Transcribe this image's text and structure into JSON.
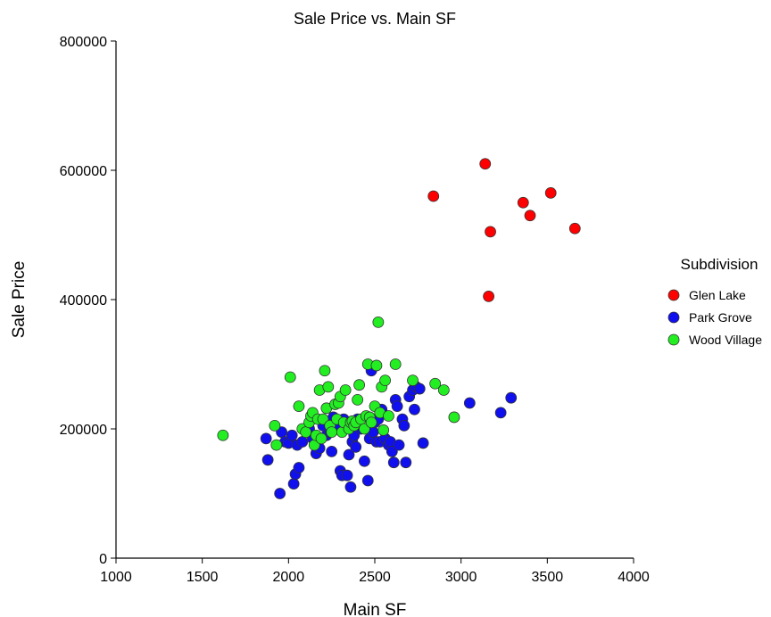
{
  "chart_data": {
    "type": "scatter",
    "title": "Sale Price vs. Main SF",
    "xlabel": "Main SF",
    "ylabel": "Sale Price",
    "xlim": [
      1000,
      4000
    ],
    "ylim": [
      0,
      800000
    ],
    "xticks": [
      "1000",
      "1500",
      "2000",
      "2500",
      "3000",
      "3500",
      "4000"
    ],
    "yticks": [
      "0",
      "200000",
      "400000",
      "600000",
      "800000"
    ],
    "grid": false,
    "legend": {
      "title": "Subdivision",
      "position": "right"
    },
    "series": [
      {
        "name": "Glen Lake",
        "color": "#ff0000",
        "points": [
          [
            2840,
            560000
          ],
          [
            3140,
            610000
          ],
          [
            3160,
            405000
          ],
          [
            3170,
            505000
          ],
          [
            3360,
            550000
          ],
          [
            3400,
            530000
          ],
          [
            3520,
            565000
          ],
          [
            3660,
            510000
          ]
        ]
      },
      {
        "name": "Park Grove",
        "color": "#1010ee",
        "points": [
          [
            1870,
            185000
          ],
          [
            1880,
            152000
          ],
          [
            1950,
            100000
          ],
          [
            1960,
            195000
          ],
          [
            1980,
            180000
          ],
          [
            2000,
            178000
          ],
          [
            2020,
            190000
          ],
          [
            2030,
            115000
          ],
          [
            2040,
            130000
          ],
          [
            2050,
            175000
          ],
          [
            2060,
            140000
          ],
          [
            2080,
            180000
          ],
          [
            2120,
            200000
          ],
          [
            2140,
            185000
          ],
          [
            2160,
            162000
          ],
          [
            2180,
            170000
          ],
          [
            2200,
            205000
          ],
          [
            2220,
            190000
          ],
          [
            2240,
            195000
          ],
          [
            2250,
            165000
          ],
          [
            2260,
            218000
          ],
          [
            2280,
            205000
          ],
          [
            2300,
            135000
          ],
          [
            2310,
            128000
          ],
          [
            2320,
            215000
          ],
          [
            2340,
            128000
          ],
          [
            2350,
            160000
          ],
          [
            2360,
            110000
          ],
          [
            2370,
            180000
          ],
          [
            2380,
            190000
          ],
          [
            2390,
            172000
          ],
          [
            2400,
            215000
          ],
          [
            2420,
            200000
          ],
          [
            2440,
            150000
          ],
          [
            2460,
            120000
          ],
          [
            2470,
            185000
          ],
          [
            2480,
            290000
          ],
          [
            2490,
            195000
          ],
          [
            2500,
            210000
          ],
          [
            2510,
            180000
          ],
          [
            2520,
            215000
          ],
          [
            2530,
            180000
          ],
          [
            2540,
            230000
          ],
          [
            2560,
            185000
          ],
          [
            2580,
            175000
          ],
          [
            2590,
            180000
          ],
          [
            2600,
            165000
          ],
          [
            2610,
            148000
          ],
          [
            2620,
            245000
          ],
          [
            2630,
            235000
          ],
          [
            2640,
            175000
          ],
          [
            2660,
            215000
          ],
          [
            2670,
            205000
          ],
          [
            2680,
            148000
          ],
          [
            2700,
            250000
          ],
          [
            2720,
            260000
          ],
          [
            2730,
            230000
          ],
          [
            2740,
            265000
          ],
          [
            2760,
            262000
          ],
          [
            2780,
            178000
          ],
          [
            3050,
            240000
          ],
          [
            3230,
            225000
          ],
          [
            3290,
            248000
          ]
        ]
      },
      {
        "name": "Wood Village",
        "color": "#22ee22",
        "points": [
          [
            1620,
            190000
          ],
          [
            1920,
            205000
          ],
          [
            1930,
            175000
          ],
          [
            2010,
            280000
          ],
          [
            2060,
            235000
          ],
          [
            2080,
            200000
          ],
          [
            2100,
            195000
          ],
          [
            2120,
            210000
          ],
          [
            2130,
            220000
          ],
          [
            2140,
            225000
          ],
          [
            2150,
            175000
          ],
          [
            2160,
            190000
          ],
          [
            2170,
            215000
          ],
          [
            2180,
            260000
          ],
          [
            2190,
            185000
          ],
          [
            2200,
            215000
          ],
          [
            2210,
            290000
          ],
          [
            2220,
            232000
          ],
          [
            2230,
            265000
          ],
          [
            2240,
            205000
          ],
          [
            2250,
            195000
          ],
          [
            2270,
            238000
          ],
          [
            2280,
            215000
          ],
          [
            2290,
            240000
          ],
          [
            2300,
            250000
          ],
          [
            2310,
            195000
          ],
          [
            2320,
            210000
          ],
          [
            2330,
            260000
          ],
          [
            2350,
            200000
          ],
          [
            2360,
            210000
          ],
          [
            2370,
            212000
          ],
          [
            2380,
            205000
          ],
          [
            2390,
            210000
          ],
          [
            2400,
            245000
          ],
          [
            2410,
            268000
          ],
          [
            2420,
            215000
          ],
          [
            2440,
            200000
          ],
          [
            2450,
            220000
          ],
          [
            2460,
            300000
          ],
          [
            2470,
            218000
          ],
          [
            2480,
            210000
          ],
          [
            2500,
            235000
          ],
          [
            2510,
            298000
          ],
          [
            2520,
            365000
          ],
          [
            2530,
            225000
          ],
          [
            2540,
            265000
          ],
          [
            2550,
            198000
          ],
          [
            2560,
            275000
          ],
          [
            2580,
            220000
          ],
          [
            2620,
            300000
          ],
          [
            2720,
            275000
          ],
          [
            2850,
            270000
          ],
          [
            2900,
            260000
          ],
          [
            2960,
            218000
          ]
        ]
      }
    ]
  }
}
